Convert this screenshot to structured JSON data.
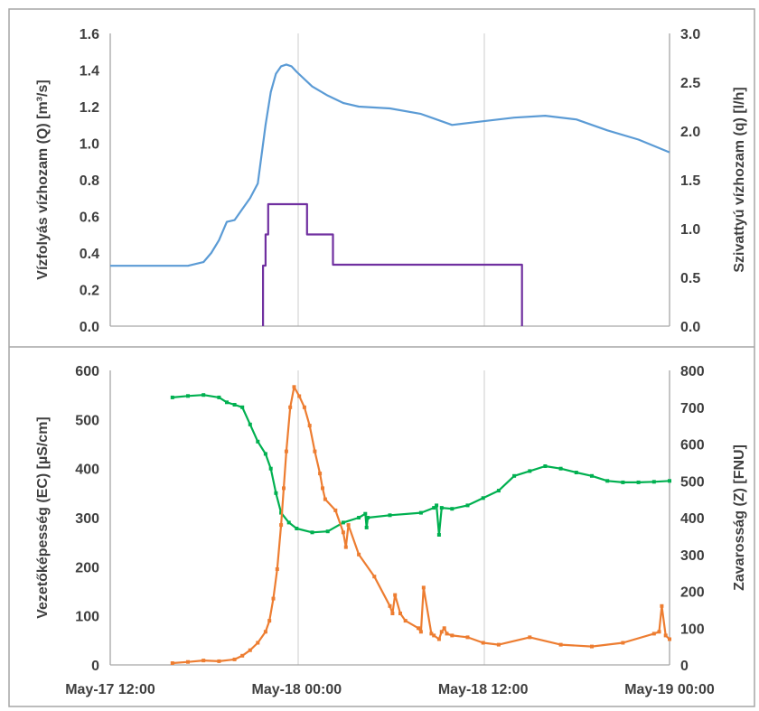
{
  "chart_data": [
    {
      "type": "line",
      "panel": "top",
      "x_range": [
        "2019-05-17 12:00",
        "2019-05-19 00:00"
      ],
      "grid_x": [
        "May-18 00:00",
        "May-18 12:00"
      ],
      "ylabel_left": "Vízfolyás vízhozam (Q) [m³/s]",
      "ylabel_right": "Szivattyú vízhozam (q) [l/h]",
      "ylim_left": [
        0,
        1.6
      ],
      "ylim_right": [
        0,
        3.0
      ],
      "y_ticks_left": [
        "0.0",
        "0.2",
        "0.4",
        "0.6",
        "0.8",
        "1.0",
        "1.2",
        "1.4",
        "1.6"
      ],
      "y_ticks_right": [
        "0.0",
        "0.5",
        "1.0",
        "1.5",
        "2.0",
        "2.5",
        "3.0"
      ],
      "series": [
        {
          "axis": "left",
          "color": "#5b9bd5",
          "x": [
            "2019-05-17 12:00",
            "2019-05-17 15:00",
            "2019-05-17 17:00",
            "2019-05-17 18:00",
            "2019-05-17 18:30",
            "2019-05-17 19:00",
            "2019-05-17 19:30",
            "2019-05-17 20:00",
            "2019-05-17 20:30",
            "2019-05-17 21:00",
            "2019-05-17 21:30",
            "2019-05-17 22:00",
            "2019-05-17 22:20",
            "2019-05-17 22:40",
            "2019-05-17 23:00",
            "2019-05-17 23:20",
            "2019-05-17 23:40",
            "2019-05-18 00:00",
            "2019-05-18 01:00",
            "2019-05-18 02:00",
            "2019-05-18 03:00",
            "2019-05-18 04:00",
            "2019-05-18 06:00",
            "2019-05-18 08:00",
            "2019-05-18 10:00",
            "2019-05-18 12:00",
            "2019-05-18 14:00",
            "2019-05-18 16:00",
            "2019-05-18 18:00",
            "2019-05-18 20:00",
            "2019-05-18 22:00",
            "2019-05-19 00:00"
          ],
          "values": [
            0.33,
            0.33,
            0.33,
            0.35,
            0.4,
            0.47,
            0.57,
            0.58,
            0.64,
            0.7,
            0.78,
            1.1,
            1.28,
            1.38,
            1.42,
            1.43,
            1.42,
            1.39,
            1.31,
            1.26,
            1.22,
            1.2,
            1.19,
            1.16,
            1.1,
            1.12,
            1.14,
            1.15,
            1.13,
            1.07,
            1.02,
            0.95
          ]
        },
        {
          "axis": "right",
          "color": "#7030a0",
          "x": [
            "2019-05-17 21:50",
            "2019-05-17 21:50",
            "2019-05-17 22:00",
            "2019-05-17 22:00",
            "2019-05-17 22:10",
            "2019-05-17 22:10",
            "2019-05-17 22:35",
            "2019-05-17 22:35",
            "2019-05-18 00:40",
            "2019-05-18 00:40",
            "2019-05-18 02:20",
            "2019-05-18 02:20",
            "2019-05-18 14:30",
            "2019-05-18 14:30"
          ],
          "values": [
            0,
            0.62,
            0.62,
            0.94,
            0.94,
            1.25,
            1.25,
            1.25,
            1.25,
            0.94,
            0.94,
            0.63,
            0.63,
            0
          ]
        }
      ]
    },
    {
      "type": "line",
      "panel": "bottom",
      "x_range": [
        "2019-05-17 12:00",
        "2019-05-19 00:00"
      ],
      "x_tick_labels": [
        "May-17 12:00",
        "May-18 00:00",
        "May-18 12:00",
        "May-19 00:00"
      ],
      "grid_x": [
        "May-18 00:00",
        "May-18 12:00"
      ],
      "ylabel_left": "Vezetőképesség (EC) [µS/cm]",
      "ylabel_right": "Zavarosság (Z) [FNU]",
      "ylim_left": [
        0,
        600
      ],
      "ylim_right": [
        0,
        800
      ],
      "y_ticks_left": [
        "0",
        "100",
        "200",
        "300",
        "400",
        "500",
        "600"
      ],
      "y_ticks_right": [
        "0",
        "100",
        "200",
        "300",
        "400",
        "500",
        "600",
        "700",
        "800"
      ],
      "series": [
        {
          "axis": "left",
          "color": "#00b050",
          "x": [
            "2019-05-17 16:00",
            "2019-05-17 17:00",
            "2019-05-17 18:00",
            "2019-05-17 19:00",
            "2019-05-17 19:30",
            "2019-05-17 20:00",
            "2019-05-17 20:30",
            "2019-05-17 21:00",
            "2019-05-17 21:30",
            "2019-05-17 22:00",
            "2019-05-17 22:20",
            "2019-05-17 22:40",
            "2019-05-17 23:00",
            "2019-05-17 23:30",
            "2019-05-18 00:00",
            "2019-05-18 01:00",
            "2019-05-18 02:00",
            "2019-05-18 03:00",
            "2019-05-18 04:00",
            "2019-05-18 04:25",
            "2019-05-18 04:30",
            "2019-05-18 04:35",
            "2019-05-18 06:00",
            "2019-05-18 08:00",
            "2019-05-18 08:50",
            "2019-05-18 09:00",
            "2019-05-18 09:10",
            "2019-05-18 09:20",
            "2019-05-18 10:00",
            "2019-05-18 11:00",
            "2019-05-18 12:00",
            "2019-05-18 13:00",
            "2019-05-18 14:00",
            "2019-05-18 15:00",
            "2019-05-18 16:00",
            "2019-05-18 17:00",
            "2019-05-18 18:00",
            "2019-05-18 19:00",
            "2019-05-18 20:00",
            "2019-05-18 21:00",
            "2019-05-18 22:00",
            "2019-05-18 23:00",
            "2019-05-19 00:00"
          ],
          "values": [
            545,
            548,
            550,
            545,
            535,
            530,
            525,
            490,
            455,
            430,
            400,
            350,
            310,
            290,
            278,
            270,
            272,
            290,
            300,
            308,
            280,
            300,
            305,
            310,
            320,
            325,
            265,
            320,
            318,
            325,
            340,
            355,
            385,
            395,
            405,
            400,
            392,
            385,
            375,
            372,
            372,
            373,
            375
          ]
        },
        {
          "axis": "right",
          "color": "#ed7d31",
          "x": [
            "2019-05-17 16:00",
            "2019-05-17 17:00",
            "2019-05-17 18:00",
            "2019-05-17 19:00",
            "2019-05-17 20:00",
            "2019-05-17 20:30",
            "2019-05-17 21:00",
            "2019-05-17 21:30",
            "2019-05-17 22:00",
            "2019-05-17 22:15",
            "2019-05-17 22:30",
            "2019-05-17 22:45",
            "2019-05-17 23:00",
            "2019-05-17 23:10",
            "2019-05-17 23:20",
            "2019-05-17 23:35",
            "2019-05-17 23:50",
            "2019-05-18 00:10",
            "2019-05-18 00:30",
            "2019-05-18 00:50",
            "2019-05-18 01:10",
            "2019-05-18 01:30",
            "2019-05-18 01:40",
            "2019-05-18 01:50",
            "2019-05-18 02:30",
            "2019-05-18 03:00",
            "2019-05-18 03:10",
            "2019-05-18 03:20",
            "2019-05-18 04:00",
            "2019-05-18 05:00",
            "2019-05-18 06:00",
            "2019-05-18 06:10",
            "2019-05-18 06:20",
            "2019-05-18 06:40",
            "2019-05-18 07:00",
            "2019-05-18 07:50",
            "2019-05-18 08:00",
            "2019-05-18 08:10",
            "2019-05-18 08:40",
            "2019-05-18 08:50",
            "2019-05-18 09:10",
            "2019-05-18 09:20",
            "2019-05-18 09:30",
            "2019-05-18 09:40",
            "2019-05-18 10:00",
            "2019-05-18 11:00",
            "2019-05-18 12:00",
            "2019-05-18 13:00",
            "2019-05-18 15:00",
            "2019-05-18 17:00",
            "2019-05-18 19:00",
            "2019-05-18 21:00",
            "2019-05-18 23:00",
            "2019-05-18 23:20",
            "2019-05-18 23:30",
            "2019-05-18 23:45",
            "2019-05-19 00:00"
          ],
          "values": [
            5,
            8,
            12,
            10,
            15,
            25,
            40,
            60,
            90,
            120,
            180,
            260,
            380,
            480,
            580,
            700,
            755,
            730,
            700,
            650,
            580,
            520,
            480,
            450,
            420,
            360,
            320,
            380,
            300,
            240,
            160,
            140,
            190,
            140,
            120,
            100,
            90,
            210,
            85,
            80,
            70,
            90,
            100,
            85,
            80,
            75,
            60,
            55,
            75,
            55,
            50,
            60,
            85,
            90,
            160,
            80,
            70
          ]
        }
      ]
    }
  ]
}
